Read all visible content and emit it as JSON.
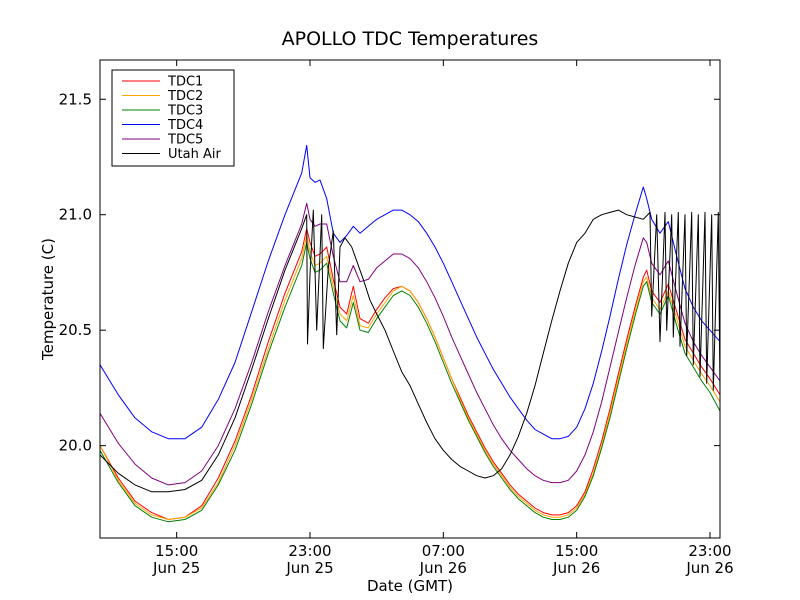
{
  "chart_data": {
    "type": "line",
    "title": "APOLLO TDC Temperatures",
    "xlabel": "Date (GMT)",
    "ylabel": "Temperature (C)",
    "x_unit": "hours since Jun 25 00:00 GMT",
    "xlim": [
      10.4,
      47.6
    ],
    "ylim": [
      19.6,
      21.67
    ],
    "yticks": [
      20.0,
      20.5,
      21.0,
      21.5
    ],
    "ytick_labels": [
      "20.0",
      "20.5",
      "21.0",
      "21.5"
    ],
    "xticks": [
      {
        "x": 15,
        "time": "15:00",
        "date": "Jun 25"
      },
      {
        "x": 23,
        "time": "23:00",
        "date": "Jun 25"
      },
      {
        "x": 31,
        "time": "07:00",
        "date": "Jun 26"
      },
      {
        "x": 39,
        "time": "15:00",
        "date": "Jun 26"
      },
      {
        "x": 47,
        "time": "23:00",
        "date": "Jun 26"
      }
    ],
    "legend_position": "top-left",
    "series": [
      {
        "name": "TDC1",
        "color": "#ff0000",
        "x": [
          10.4,
          11.5,
          12.5,
          13.5,
          14.5,
          15.5,
          16.5,
          17.5,
          18.5,
          19.5,
          20.5,
          21.5,
          22.5,
          22.8,
          23.0,
          23.3,
          23.6,
          24.0,
          24.4,
          24.8,
          25.2,
          25.6,
          26.0,
          26.5,
          27.0,
          27.5,
          28.0,
          28.5,
          29.0,
          29.5,
          30.0,
          30.5,
          31.0,
          31.5,
          32.0,
          32.5,
          33.0,
          33.5,
          34.0,
          34.5,
          35.0,
          35.5,
          36.0,
          36.5,
          37.0,
          37.5,
          38.0,
          38.5,
          39.0,
          39.5,
          40.0,
          40.5,
          41.0,
          41.5,
          42.0,
          42.5,
          43.0,
          43.2,
          43.5,
          44.0,
          44.5,
          45.0,
          45.5,
          46.0,
          46.5,
          47.0,
          47.6
        ],
        "values": [
          20.0,
          19.86,
          19.76,
          19.71,
          19.68,
          19.69,
          19.74,
          19.86,
          20.02,
          20.22,
          20.45,
          20.66,
          20.84,
          20.94,
          20.88,
          20.82,
          20.83,
          20.86,
          20.72,
          20.6,
          20.57,
          20.69,
          20.55,
          20.53,
          20.59,
          20.64,
          20.68,
          20.69,
          20.67,
          20.62,
          20.55,
          20.47,
          20.38,
          20.29,
          20.21,
          20.13,
          20.06,
          19.99,
          19.93,
          19.88,
          19.83,
          19.79,
          19.76,
          19.73,
          19.71,
          19.7,
          19.7,
          19.71,
          19.74,
          19.8,
          19.9,
          20.02,
          20.16,
          20.31,
          20.46,
          20.6,
          20.73,
          20.76,
          20.67,
          20.62,
          20.7,
          20.58,
          20.46,
          20.4,
          20.34,
          20.29,
          20.22
        ]
      },
      {
        "name": "TDC2",
        "color": "#ffa500",
        "x": [
          10.4,
          11.5,
          12.5,
          13.5,
          14.5,
          15.5,
          16.5,
          17.5,
          18.5,
          19.5,
          20.5,
          21.5,
          22.5,
          22.8,
          23.0,
          23.3,
          23.6,
          24.0,
          24.4,
          24.8,
          25.2,
          25.6,
          26.0,
          26.5,
          27.0,
          27.5,
          28.0,
          28.5,
          29.0,
          29.5,
          30.0,
          30.5,
          31.0,
          31.5,
          32.0,
          32.5,
          33.0,
          33.5,
          34.0,
          34.5,
          35.0,
          35.5,
          36.0,
          36.5,
          37.0,
          37.5,
          38.0,
          38.5,
          39.0,
          39.5,
          40.0,
          40.5,
          41.0,
          41.5,
          42.0,
          42.5,
          43.0,
          43.2,
          43.5,
          44.0,
          44.5,
          45.0,
          45.5,
          46.0,
          46.5,
          47.0,
          47.6
        ],
        "values": [
          20.0,
          19.85,
          19.75,
          19.7,
          19.68,
          19.69,
          19.73,
          19.84,
          20.0,
          20.2,
          20.42,
          20.63,
          20.81,
          20.91,
          20.84,
          20.78,
          20.79,
          20.82,
          20.69,
          20.57,
          20.54,
          20.65,
          20.52,
          20.51,
          20.57,
          20.62,
          20.67,
          20.69,
          20.67,
          20.62,
          20.55,
          20.47,
          20.38,
          20.29,
          20.2,
          20.12,
          20.05,
          19.98,
          19.92,
          19.87,
          19.82,
          19.78,
          19.75,
          19.72,
          19.7,
          19.69,
          19.69,
          19.7,
          19.73,
          19.79,
          19.88,
          20.0,
          20.14,
          20.29,
          20.44,
          20.58,
          20.71,
          20.73,
          20.64,
          20.59,
          20.67,
          20.55,
          20.43,
          20.37,
          20.31,
          20.26,
          20.19
        ]
      },
      {
        "name": "TDC3",
        "color": "#008000",
        "x": [
          10.4,
          11.5,
          12.5,
          13.5,
          14.5,
          15.5,
          16.5,
          17.5,
          18.5,
          19.5,
          20.5,
          21.5,
          22.5,
          22.8,
          23.0,
          23.3,
          23.6,
          24.0,
          24.4,
          24.8,
          25.2,
          25.6,
          26.0,
          26.5,
          27.0,
          27.5,
          28.0,
          28.5,
          29.0,
          29.5,
          30.0,
          30.5,
          31.0,
          31.5,
          32.0,
          32.5,
          33.0,
          33.5,
          34.0,
          34.5,
          35.0,
          35.5,
          36.0,
          36.5,
          37.0,
          37.5,
          38.0,
          38.5,
          39.0,
          39.5,
          40.0,
          40.5,
          41.0,
          41.5,
          42.0,
          42.5,
          43.0,
          43.2,
          43.5,
          44.0,
          44.5,
          45.0,
          45.5,
          46.0,
          46.5,
          47.0,
          47.6
        ],
        "values": [
          19.98,
          19.84,
          19.74,
          19.69,
          19.67,
          19.68,
          19.72,
          19.83,
          19.98,
          20.18,
          20.4,
          20.6,
          20.78,
          20.88,
          20.81,
          20.75,
          20.76,
          20.79,
          20.66,
          20.54,
          20.51,
          20.62,
          20.5,
          20.49,
          20.55,
          20.6,
          20.65,
          20.67,
          20.65,
          20.6,
          20.53,
          20.45,
          20.36,
          20.27,
          20.19,
          20.11,
          20.04,
          19.97,
          19.91,
          19.86,
          19.81,
          19.77,
          19.74,
          19.71,
          19.69,
          19.68,
          19.68,
          19.69,
          19.72,
          19.78,
          19.87,
          19.99,
          20.12,
          20.27,
          20.42,
          20.56,
          20.69,
          20.71,
          20.62,
          20.57,
          20.65,
          20.52,
          20.4,
          20.34,
          20.28,
          20.23,
          20.15
        ]
      },
      {
        "name": "TDC4",
        "color": "#0000ff",
        "x": [
          10.4,
          11.5,
          12.5,
          13.5,
          14.5,
          15.5,
          16.5,
          17.5,
          18.5,
          19.5,
          20.5,
          21.5,
          22.5,
          22.8,
          23.0,
          23.3,
          23.6,
          24.0,
          24.4,
          24.8,
          25.2,
          25.6,
          26.0,
          26.5,
          27.0,
          27.5,
          28.0,
          28.5,
          29.0,
          29.5,
          30.0,
          30.5,
          31.0,
          31.5,
          32.0,
          32.5,
          33.0,
          33.5,
          34.0,
          34.5,
          35.0,
          35.5,
          36.0,
          36.5,
          37.0,
          37.5,
          38.0,
          38.5,
          39.0,
          39.5,
          40.0,
          40.5,
          41.0,
          41.5,
          42.0,
          42.5,
          43.0,
          43.2,
          43.5,
          44.0,
          44.5,
          45.0,
          45.5,
          46.0,
          46.5,
          47.0,
          47.6
        ],
        "values": [
          20.35,
          20.22,
          20.12,
          20.06,
          20.03,
          20.03,
          20.08,
          20.2,
          20.36,
          20.58,
          20.8,
          21.0,
          21.18,
          21.3,
          21.16,
          21.14,
          21.15,
          21.07,
          20.92,
          20.88,
          20.91,
          20.95,
          20.92,
          20.95,
          20.98,
          21.0,
          21.02,
          21.02,
          21.0,
          20.97,
          20.92,
          20.86,
          20.79,
          20.71,
          20.63,
          20.55,
          20.47,
          20.4,
          20.33,
          20.27,
          20.21,
          20.16,
          20.11,
          20.07,
          20.05,
          20.03,
          20.03,
          20.04,
          20.08,
          20.16,
          20.27,
          20.41,
          20.56,
          20.72,
          20.87,
          21.0,
          21.12,
          21.07,
          20.98,
          20.92,
          20.97,
          20.82,
          20.68,
          20.6,
          20.54,
          20.5,
          20.45
        ]
      },
      {
        "name": "TDC5",
        "color": "#800080",
        "x": [
          10.4,
          11.5,
          12.5,
          13.5,
          14.5,
          15.5,
          16.5,
          17.5,
          18.5,
          19.5,
          20.5,
          21.5,
          22.5,
          22.8,
          23.0,
          23.3,
          23.6,
          24.0,
          24.4,
          24.8,
          25.2,
          25.6,
          26.0,
          26.5,
          27.0,
          27.5,
          28.0,
          28.5,
          29.0,
          29.5,
          30.0,
          30.5,
          31.0,
          31.5,
          32.0,
          32.5,
          33.0,
          33.5,
          34.0,
          34.5,
          35.0,
          35.5,
          36.0,
          36.5,
          37.0,
          37.5,
          38.0,
          38.5,
          39.0,
          39.5,
          40.0,
          40.5,
          41.0,
          41.5,
          42.0,
          42.5,
          43.0,
          43.2,
          43.5,
          44.0,
          44.5,
          45.0,
          45.5,
          46.0,
          46.5,
          47.0,
          47.6
        ],
        "values": [
          20.14,
          20.01,
          19.92,
          19.86,
          19.83,
          19.84,
          19.89,
          20.0,
          20.16,
          20.36,
          20.58,
          20.78,
          20.96,
          21.05,
          20.98,
          20.95,
          20.96,
          20.96,
          20.82,
          20.71,
          20.71,
          20.78,
          20.71,
          20.72,
          20.77,
          20.8,
          20.83,
          20.83,
          20.81,
          20.77,
          20.71,
          20.64,
          20.56,
          20.47,
          20.39,
          20.31,
          20.23,
          20.16,
          20.09,
          20.03,
          19.98,
          19.94,
          19.9,
          19.87,
          19.85,
          19.84,
          19.84,
          19.85,
          19.89,
          19.96,
          20.06,
          20.19,
          20.34,
          20.49,
          20.64,
          20.78,
          20.9,
          20.88,
          20.79,
          20.74,
          20.8,
          20.66,
          20.53,
          20.45,
          20.39,
          20.34,
          20.28
        ]
      },
      {
        "name": "Utah Air",
        "color": "#000000",
        "x": [
          10.4,
          11.5,
          12.5,
          13.5,
          14.5,
          15.5,
          16.5,
          17.5,
          18.5,
          19.5,
          20.5,
          21.5,
          22.5,
          22.8,
          22.85,
          23.0,
          23.2,
          23.4,
          23.6,
          23.7,
          23.8,
          24.1,
          24.4,
          24.6,
          24.8,
          25.1,
          25.5,
          25.8,
          26.2,
          26.6,
          27.0,
          27.5,
          28.0,
          28.5,
          29.0,
          29.5,
          30.0,
          30.5,
          31.0,
          31.5,
          32.0,
          32.5,
          33.0,
          33.5,
          34.0,
          34.5,
          35.0,
          35.5,
          36.0,
          36.5,
          37.0,
          37.5,
          38.0,
          38.5,
          39.0,
          39.5,
          40.0,
          40.5,
          41.0,
          41.5,
          42.0,
          42.5,
          43.0,
          43.4,
          43.5,
          43.8,
          44.0,
          44.3,
          44.4,
          44.7,
          44.8,
          45.1,
          45.2,
          45.5,
          45.6,
          45.9,
          46.0,
          46.3,
          46.4,
          46.7,
          46.8,
          47.1,
          47.2,
          47.5,
          47.6
        ],
        "values": [
          19.96,
          19.88,
          19.83,
          19.8,
          19.8,
          19.81,
          19.85,
          19.96,
          20.12,
          20.33,
          20.55,
          20.76,
          20.94,
          21.0,
          20.44,
          20.74,
          21.02,
          20.5,
          20.83,
          21.0,
          20.42,
          20.77,
          20.93,
          20.48,
          20.86,
          20.9,
          20.86,
          20.8,
          20.72,
          20.63,
          20.57,
          20.5,
          20.41,
          20.32,
          20.26,
          20.18,
          20.1,
          20.03,
          19.98,
          19.94,
          19.91,
          19.89,
          19.87,
          19.86,
          19.87,
          19.9,
          19.96,
          20.04,
          20.14,
          20.26,
          20.4,
          20.54,
          20.67,
          20.79,
          20.88,
          20.92,
          20.98,
          21.0,
          21.01,
          21.02,
          21.0,
          20.99,
          20.98,
          21.01,
          20.56,
          21.0,
          20.45,
          21.01,
          20.5,
          21.0,
          20.47,
          21.01,
          20.43,
          21.0,
          20.39,
          21.01,
          20.35,
          21.0,
          20.3,
          21.01,
          20.27,
          21.0,
          20.24,
          21.01,
          20.22
        ]
      }
    ]
  }
}
